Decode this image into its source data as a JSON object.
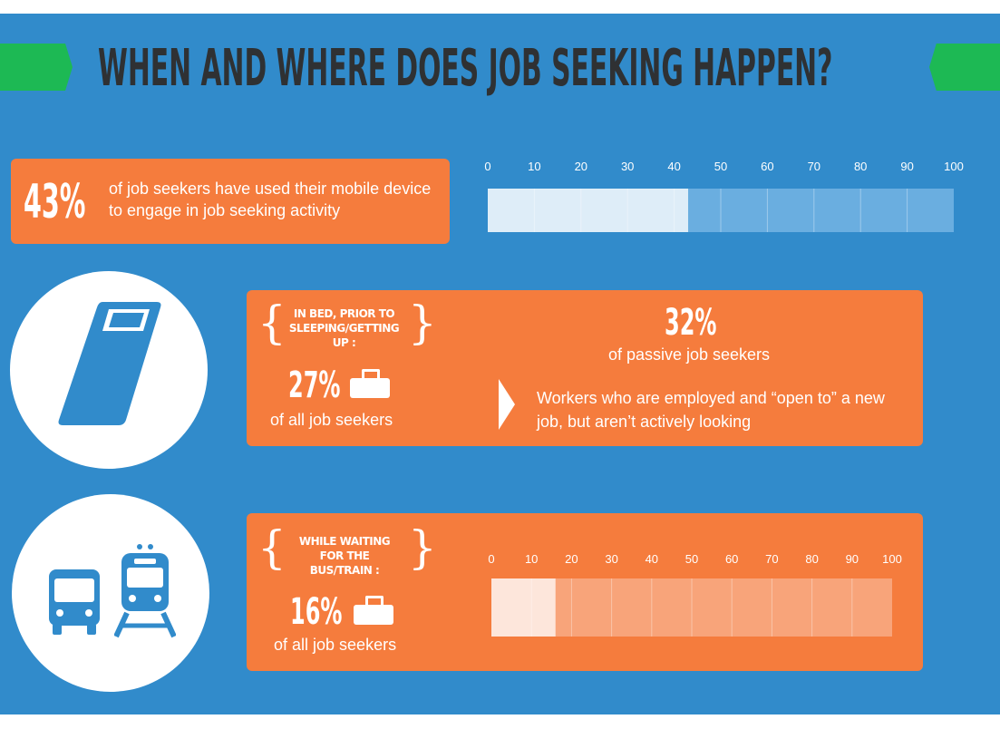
{
  "title": "WHEN AND WHERE DOES JOB SEEKING HAPPEN?",
  "colors": {
    "background": "#318bcb",
    "orange": "#f57c3d",
    "green": "#1db954",
    "title_text": "#2f3133",
    "white": "#ffffff"
  },
  "mobile": {
    "percent": "43%",
    "text": "of job seekers have used their mobile device to engage in job seeking activity"
  },
  "in_bed": {
    "label": "IN BED, PRIOR TO SLEEPING/GETTING UP :",
    "percent": "27%",
    "subtext": "of all job seekers",
    "passive_percent": "32%",
    "passive_label": "of passive job seekers",
    "passive_description": "Workers who are employed and “open to” a new job, but aren’t actively looking"
  },
  "bus_train": {
    "label": "WHILE WAITING FOR THE BUS/TRAIN :",
    "percent": "16%",
    "subtext": "of all job seekers"
  },
  "icons": [
    "bed-icon",
    "briefcase-icon",
    "bus-icon",
    "train-icon",
    "chevron-right-icon"
  ],
  "chart_data": [
    {
      "type": "bar",
      "orientation": "horizontal",
      "ticks": [
        0,
        10,
        20,
        30,
        40,
        50,
        60,
        70,
        80,
        90,
        100
      ],
      "xlim": [
        0,
        100
      ],
      "categories": [
        ""
      ],
      "values": [
        43
      ]
    },
    {
      "type": "bar",
      "orientation": "horizontal",
      "ticks": [
        0,
        10,
        20,
        30,
        40,
        50,
        60,
        70,
        80,
        90,
        100
      ],
      "xlim": [
        0,
        100
      ],
      "categories": [
        ""
      ],
      "values": [
        16
      ]
    }
  ]
}
